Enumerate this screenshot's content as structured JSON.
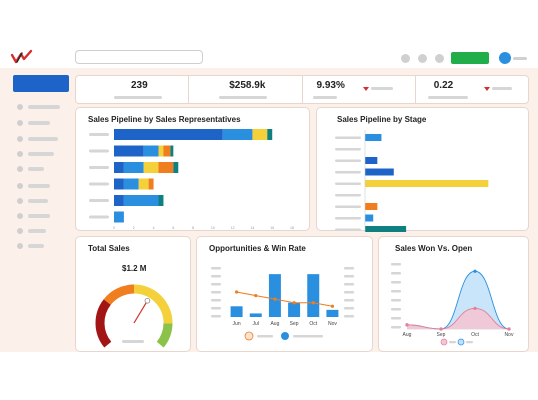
{
  "kpis": [
    {
      "value": "239"
    },
    {
      "value": "$258.9k"
    },
    {
      "value": "9.93%"
    },
    {
      "value": "0.22"
    }
  ],
  "colors": {
    "primary_blue": "#1e64c8",
    "light_blue": "#2b8fe0",
    "yellow": "#f4d13a",
    "orange": "#f07d1e",
    "red": "#d32f2f",
    "teal": "#0f8080",
    "green": "#22ad4b",
    "pink": "#f2a5b8",
    "background": "#fcf1ea"
  },
  "icons": {
    "logo": "checkmark-logo-icon",
    "avatar": "user-avatar-icon"
  },
  "cards": {
    "pipeline_reps": {
      "title": "Sales Pipeline by Sales Representatives"
    },
    "pipeline_stage": {
      "title": "Sales Pipeline by Stage"
    },
    "total_sales": {
      "title": "Total Sales",
      "value": "$1.2 M"
    },
    "opps_win_rate": {
      "title": "Opportunities & Win Rate"
    },
    "won_vs_open": {
      "title": "Sales Won Vs. Open"
    }
  },
  "chart_data": [
    {
      "type": "bar",
      "orientation": "horizontal",
      "stacked": true,
      "title": "Sales Pipeline by Sales Representatives",
      "series": [
        {
          "color": "#1e64c8",
          "values": [
            11,
            3,
            1,
            1,
            1,
            0
          ]
        },
        {
          "color": "#2b8fe0",
          "values": [
            3,
            1.5,
            2,
            1.5,
            3.5,
            1
          ]
        },
        {
          "color": "#f4d13a",
          "values": [
            1.5,
            0.5,
            1.5,
            1,
            0,
            0
          ]
        },
        {
          "color": "#f07d1e",
          "values": [
            0,
            0.7,
            1.5,
            0.5,
            0,
            0
          ]
        },
        {
          "color": "#0f8080",
          "values": [
            0.5,
            0.3,
            0.5,
            0,
            0.5,
            0
          ]
        },
        {
          "color": "#d32f2f",
          "values": [
            0,
            0,
            0,
            0,
            0,
            0
          ]
        }
      ],
      "xlim": [
        0,
        18
      ],
      "xticks": [
        "0",
        "2",
        "4",
        "6",
        "8",
        "10",
        "12",
        "14",
        "16",
        "18"
      ]
    },
    {
      "type": "bar",
      "orientation": "horizontal",
      "title": "Sales Pipeline by Stage",
      "values": [
        2,
        0,
        1.5,
        3.5,
        15,
        0,
        1.5,
        1,
        5
      ],
      "colors": [
        "#2b8fe0",
        "#d32f2f",
        "#1e64c8",
        "#1e64c8",
        "#f4d13a",
        "#d32f2f",
        "#f07d1e",
        "#2b8fe0",
        "#0f8080"
      ],
      "xlim": [
        0,
        18
      ]
    },
    {
      "type": "gauge",
      "title": "Total Sales",
      "value_label": "$1.2 M",
      "value_fraction": 0.62
    },
    {
      "type": "bar",
      "title": "Opportunities & Win Rate",
      "categories": [
        "Jun",
        "Jul",
        "Aug",
        "Sep",
        "Oct",
        "Nov"
      ],
      "series": [
        {
          "type": "bar",
          "color": "#2b8fe0",
          "values": [
            3,
            1,
            12,
            4,
            12,
            2
          ]
        },
        {
          "type": "line",
          "color": "#f07d1e",
          "values": [
            7,
            6,
            5,
            4,
            4,
            3
          ]
        }
      ],
      "ylim": [
        0,
        14
      ]
    },
    {
      "type": "area",
      "title": "Sales Won Vs. Open",
      "categories": [
        "Aug",
        "Sep",
        "Oct",
        "Nov"
      ],
      "series": [
        {
          "color": "#2b8fe0",
          "values": [
            1,
            0,
            14,
            0
          ]
        },
        {
          "color": "#f2a5b8",
          "values": [
            1,
            0,
            5,
            0
          ]
        }
      ],
      "ylim": [
        0,
        16
      ]
    }
  ]
}
